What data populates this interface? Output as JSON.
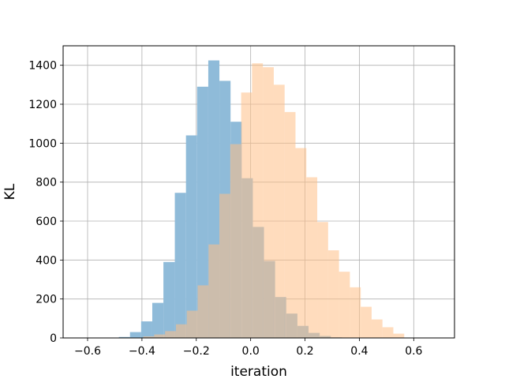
{
  "chart_data": {
    "type": "histogram",
    "title": "",
    "xlabel": "iteration",
    "ylabel": "KL",
    "xlim": [
      -0.69,
      0.75
    ],
    "ylim": [
      0,
      1500
    ],
    "grid": true,
    "xticks": [
      -0.6,
      -0.4,
      -0.2,
      0.0,
      0.2,
      0.4,
      0.6
    ],
    "xtick_labels": [
      "−0.6",
      "−0.4",
      "−0.2",
      "0.0",
      "0.2",
      "0.4",
      "0.6"
    ],
    "yticks": [
      0,
      200,
      400,
      600,
      800,
      1000,
      1200,
      1400
    ],
    "ytick_labels": [
      "0",
      "200",
      "400",
      "600",
      "800",
      "1000",
      "1200",
      "1400"
    ],
    "colors": [
      "#8fbbd9",
      "#ffbf86"
    ],
    "overlap_color": "#c7a382",
    "series": [
      {
        "color": "#8fbbd9",
        "bins": [
          [
            -0.485,
            -0.444,
            5
          ],
          [
            -0.444,
            -0.403,
            30
          ],
          [
            -0.403,
            -0.362,
            85
          ],
          [
            -0.362,
            -0.321,
            180
          ],
          [
            -0.321,
            -0.279,
            390
          ],
          [
            -0.279,
            -0.238,
            745
          ],
          [
            -0.238,
            -0.197,
            1040
          ],
          [
            -0.197,
            -0.156,
            1290
          ],
          [
            -0.156,
            -0.115,
            1425
          ],
          [
            -0.115,
            -0.074,
            1320
          ],
          [
            -0.074,
            -0.033,
            1110
          ],
          [
            -0.033,
            0.008,
            820
          ],
          [
            0.008,
            0.049,
            570
          ],
          [
            0.049,
            0.09,
            395
          ],
          [
            0.09,
            0.131,
            210
          ],
          [
            0.131,
            0.172,
            125
          ],
          [
            0.172,
            0.213,
            62
          ],
          [
            0.213,
            0.254,
            26
          ],
          [
            0.254,
            0.295,
            10
          ],
          [
            0.295,
            0.336,
            3
          ]
        ]
      },
      {
        "color": "#ffbf86",
        "bins": [
          [
            -0.395,
            -0.355,
            8
          ],
          [
            -0.355,
            -0.315,
            18
          ],
          [
            -0.315,
            -0.275,
            35
          ],
          [
            -0.275,
            -0.235,
            70
          ],
          [
            -0.235,
            -0.195,
            140
          ],
          [
            -0.195,
            -0.155,
            270
          ],
          [
            -0.155,
            -0.115,
            480
          ],
          [
            -0.115,
            -0.075,
            740
          ],
          [
            -0.075,
            -0.035,
            995
          ],
          [
            -0.035,
            0.005,
            1260
          ],
          [
            0.005,
            0.045,
            1410
          ],
          [
            0.045,
            0.085,
            1390
          ],
          [
            0.085,
            0.125,
            1300
          ],
          [
            0.125,
            0.165,
            1160
          ],
          [
            0.165,
            0.205,
            975
          ],
          [
            0.205,
            0.245,
            825
          ],
          [
            0.245,
            0.285,
            595
          ],
          [
            0.285,
            0.325,
            450
          ],
          [
            0.325,
            0.365,
            340
          ],
          [
            0.365,
            0.405,
            260
          ],
          [
            0.405,
            0.445,
            160
          ],
          [
            0.445,
            0.485,
            95
          ],
          [
            0.485,
            0.525,
            55
          ],
          [
            0.525,
            0.565,
            22
          ]
        ]
      }
    ]
  }
}
